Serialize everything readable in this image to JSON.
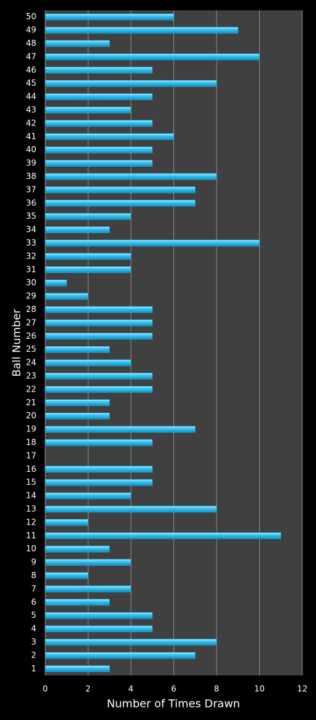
{
  "chart_data": {
    "type": "barh",
    "x_label": "Number of Times Drawn",
    "y_label": "Ball Number",
    "categories": [
      "1",
      "2",
      "3",
      "4",
      "5",
      "6",
      "7",
      "8",
      "9",
      "10",
      "11",
      "12",
      "13",
      "14",
      "15",
      "16",
      "17",
      "18",
      "19",
      "20",
      "21",
      "22",
      "23",
      "24",
      "25",
      "26",
      "27",
      "28",
      "29",
      "30",
      "31",
      "32",
      "33",
      "34",
      "35",
      "36",
      "37",
      "38",
      "39",
      "40",
      "41",
      "42",
      "43",
      "44",
      "45",
      "46",
      "47",
      "48",
      "49",
      "50"
    ],
    "values": [
      3,
      7,
      8,
      5,
      5,
      3,
      4,
      2,
      4,
      3,
      11,
      2,
      8,
      4,
      5,
      5,
      0,
      5,
      7,
      3,
      3,
      5,
      5,
      4,
      3,
      5,
      5,
      5,
      2,
      1,
      4,
      4,
      10,
      3,
      4,
      7,
      7,
      8,
      5,
      5,
      6,
      5,
      4,
      5,
      8,
      5,
      10,
      3,
      9,
      6
    ],
    "color": "#1eb4ec",
    "xlim": [
      0,
      12
    ],
    "xticks": [
      0,
      2,
      4,
      6,
      8,
      10,
      12
    ],
    "grid": true
  }
}
